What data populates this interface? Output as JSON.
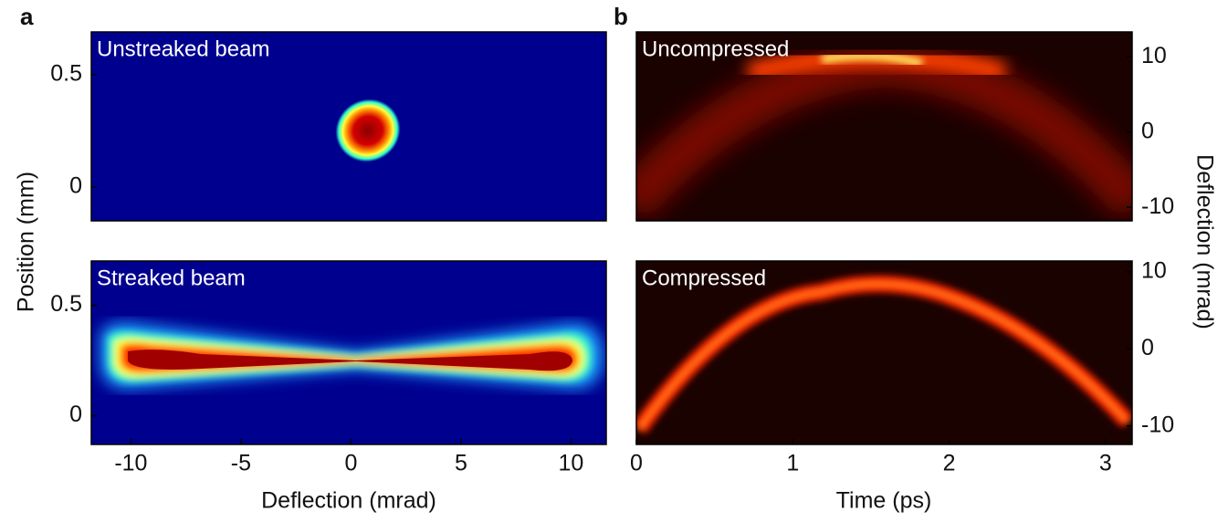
{
  "chart_data": [
    {
      "type": "heatmap",
      "panel": "a",
      "title": "Unstreaked beam",
      "ylabel": "Position (mm)",
      "colormap": "jet",
      "ylim": [
        -0.15,
        0.69
      ],
      "yticks": [
        0,
        0.5
      ]
    },
    {
      "type": "heatmap",
      "title": "Streaked beam",
      "xlabel": "Deflection (mrad)",
      "colormap": "jet",
      "xlim": [
        -11.8,
        11.6
      ],
      "xticks": [
        -10,
        -5,
        0,
        5,
        10
      ],
      "ylim": [
        -0.13,
        0.7
      ],
      "yticks": [
        0,
        0.5
      ]
    },
    {
      "type": "heatmap",
      "panel": "b",
      "title": "Uncompressed",
      "ylabel": "Deflection (mrad)",
      "colormap": "hot",
      "ylim": [
        -11.8,
        13.3
      ],
      "yticks": [
        -10,
        0,
        10
      ]
    },
    {
      "type": "heatmap",
      "title": "Compressed",
      "xlabel": "Time (ps)",
      "colormap": "hot",
      "xlim": [
        0,
        3.17
      ],
      "xticks": [
        0,
        1,
        2,
        3
      ],
      "ylim": [
        -12.4,
        11.4
      ],
      "yticks": [
        -10,
        0,
        10
      ]
    }
  ]
}
